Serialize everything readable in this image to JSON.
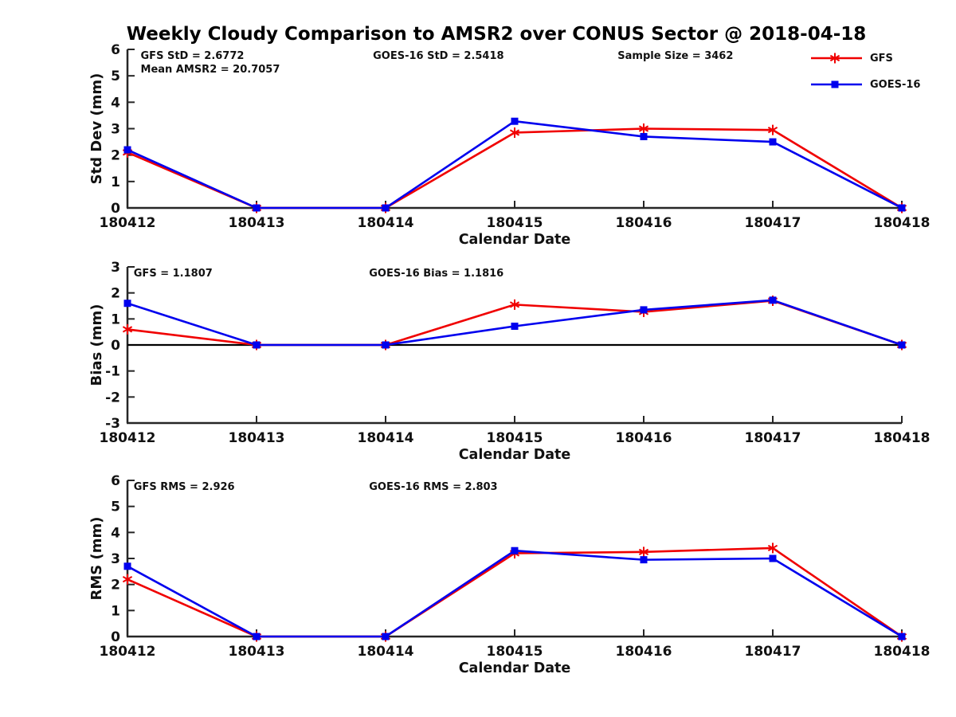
{
  "title": "Weekly Cloudy Comparison to AMSR2 over CONUS Sector @ 2018-04-18",
  "colors": {
    "gfs": "#f00000",
    "goes16": "#0000ee",
    "axis": "#262626",
    "zero_line": "#000000",
    "text": "#111111"
  },
  "legend": {
    "position": "top-right",
    "items": [
      {
        "label": "GFS",
        "color": "#f00000",
        "marker": "asterisk"
      },
      {
        "label": "GOES-16",
        "color": "#0000ee",
        "marker": "square"
      }
    ]
  },
  "chart_data": [
    {
      "type": "line",
      "title": "",
      "xlabel": "Calendar Date",
      "ylabel": "Std Dev (mm)",
      "ylim": [
        0,
        6
      ],
      "yticks": [
        0,
        1,
        2,
        3,
        4,
        5,
        6
      ],
      "grid": false,
      "zero_line": false,
      "categories": [
        "180412",
        "180413",
        "180414",
        "180415",
        "180416",
        "180417",
        "180418"
      ],
      "series": [
        {
          "name": "GFS",
          "color": "#f00000",
          "marker": "asterisk",
          "values": [
            2.1,
            0,
            0,
            2.85,
            3.0,
            2.95,
            0
          ]
        },
        {
          "name": "GOES-16",
          "color": "#0000ee",
          "marker": "square",
          "values": [
            2.2,
            0,
            0,
            3.28,
            2.7,
            2.5,
            0
          ]
        }
      ],
      "annotations": [
        {
          "text": "GFS StD = 2.6772",
          "xfrac": 0.017,
          "line": 0
        },
        {
          "text": "Mean AMSR2 = 20.7057",
          "xfrac": 0.017,
          "line": 1
        },
        {
          "text": "GOES-16 StD = 2.5418",
          "xfrac": 0.317,
          "line": 0
        },
        {
          "text": "Sample Size = 3462",
          "xfrac": 0.633,
          "line": 0
        }
      ]
    },
    {
      "type": "line",
      "title": "",
      "xlabel": "Calendar Date",
      "ylabel": "Bias (mm)",
      "ylim": [
        -3,
        3
      ],
      "yticks": [
        -3,
        -2,
        -1,
        0,
        1,
        2,
        3
      ],
      "grid": false,
      "zero_line": true,
      "categories": [
        "180412",
        "180413",
        "180414",
        "180415",
        "180416",
        "180417",
        "180418"
      ],
      "series": [
        {
          "name": "GFS",
          "color": "#f00000",
          "marker": "asterisk",
          "values": [
            0.6,
            0,
            0,
            1.55,
            1.27,
            1.7,
            0
          ]
        },
        {
          "name": "GOES-16",
          "color": "#0000ee",
          "marker": "square",
          "values": [
            1.6,
            0,
            0,
            0.72,
            1.35,
            1.72,
            0
          ]
        }
      ],
      "annotations": [
        {
          "text": "GFS = 1.1807",
          "xfrac": 0.008,
          "line": 0
        },
        {
          "text": "GOES-16 Bias  = 1.1816",
          "xfrac": 0.312,
          "line": 0
        }
      ]
    },
    {
      "type": "line",
      "title": "",
      "xlabel": "Calendar Date",
      "ylabel": "RMS (mm)",
      "ylim": [
        0,
        6
      ],
      "yticks": [
        0,
        1,
        2,
        3,
        4,
        5,
        6
      ],
      "grid": false,
      "zero_line": false,
      "categories": [
        "180412",
        "180413",
        "180414",
        "180415",
        "180416",
        "180417",
        "180418"
      ],
      "series": [
        {
          "name": "GFS",
          "color": "#f00000",
          "marker": "asterisk",
          "values": [
            2.2,
            0,
            0,
            3.2,
            3.25,
            3.4,
            0
          ]
        },
        {
          "name": "GOES-16",
          "color": "#0000ee",
          "marker": "square",
          "values": [
            2.7,
            0,
            0,
            3.3,
            2.95,
            3.0,
            0
          ]
        }
      ],
      "annotations": [
        {
          "text": "GFS RMS = 2.926",
          "xfrac": 0.008,
          "line": 0
        },
        {
          "text": "GOES-16 RMS = 2.803",
          "xfrac": 0.312,
          "line": 0
        }
      ]
    }
  ]
}
